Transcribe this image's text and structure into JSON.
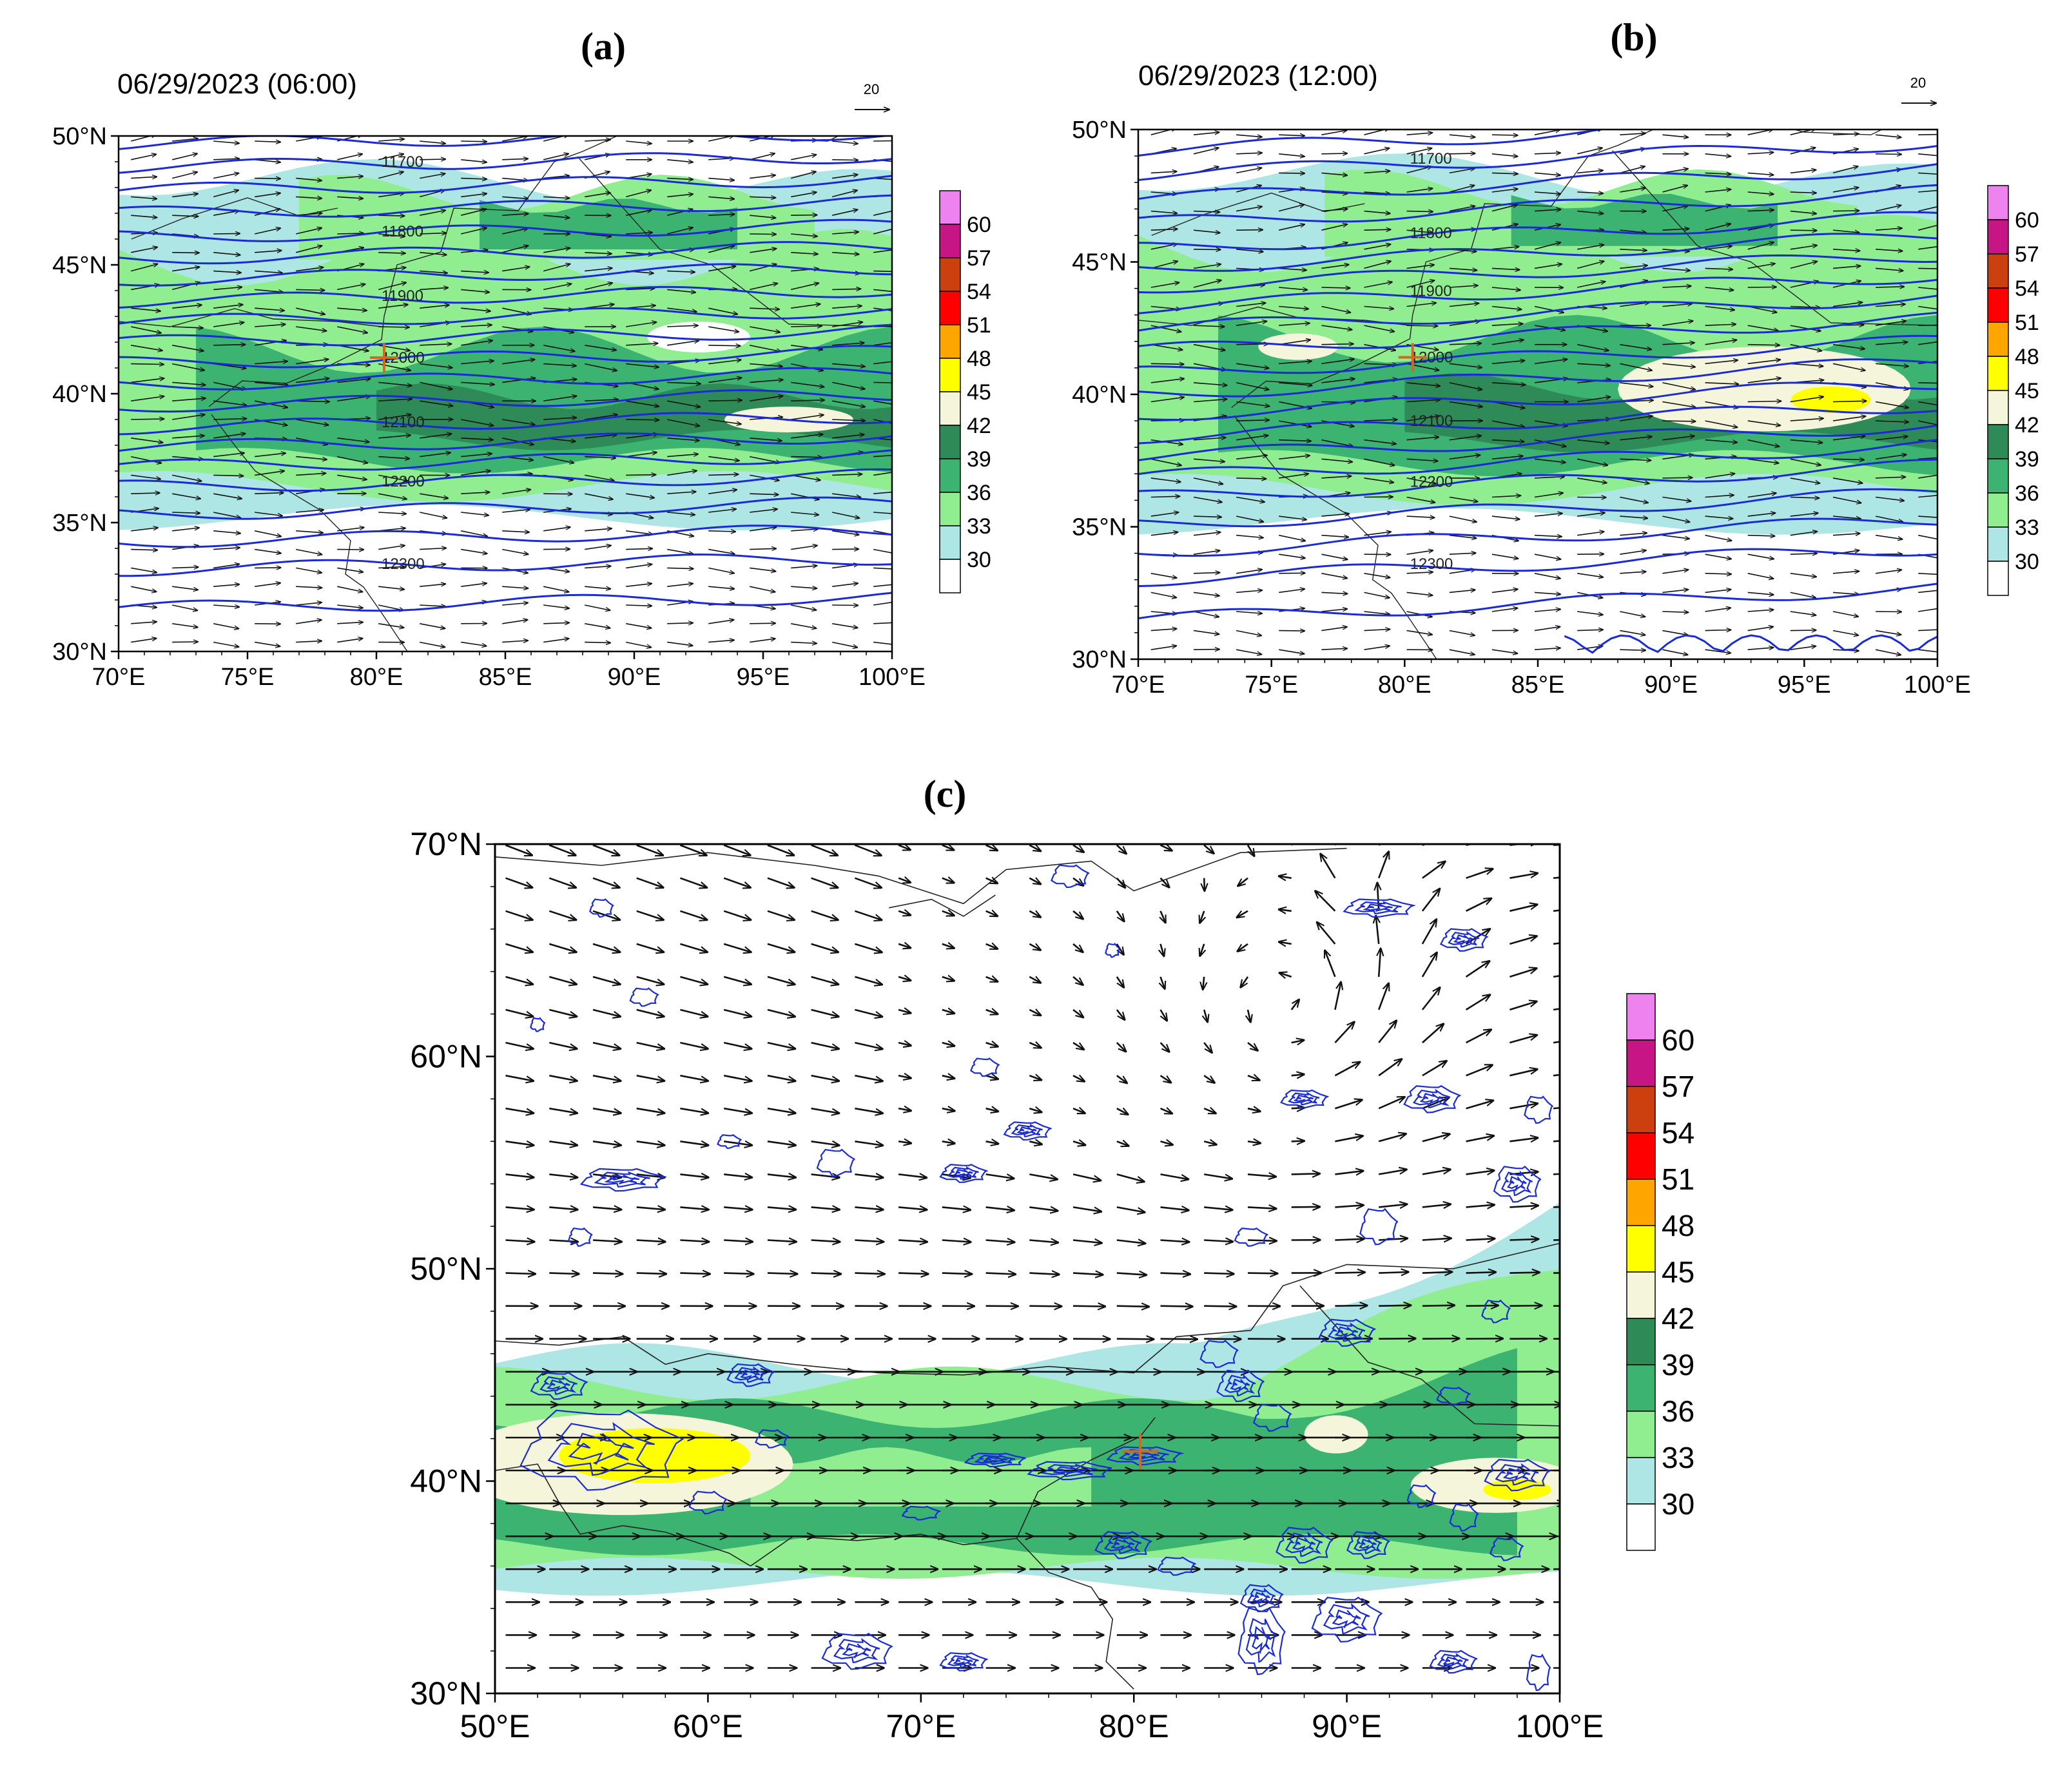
{
  "figure": {
    "panels": [
      {
        "id": "a",
        "label": "(a)",
        "datetime": "06/29/2023 (06:00)",
        "ref_vector_value": "20",
        "lon_ticks": [
          "70°E",
          "75°E",
          "80°E",
          "85°E",
          "90°E",
          "95°E",
          "100°E"
        ],
        "lat_ticks": [
          "30°N",
          "35°N",
          "40°N",
          "45°N",
          "50°N"
        ],
        "lon_range": [
          70,
          100
        ],
        "lat_range": [
          30,
          50
        ],
        "height_contours": [
          {
            "value": "11700",
            "lat": 49.0
          },
          {
            "value": "11800",
            "lat": 46.3
          },
          {
            "value": "11900",
            "lat": 43.8
          },
          {
            "value": "12000",
            "lat": 41.4
          },
          {
            "value": "12100",
            "lat": 38.9
          },
          {
            "value": "12200",
            "lat": 36.6
          },
          {
            "value": "12300",
            "lat": 33.4
          }
        ],
        "site_marker": {
          "lon": 80.3,
          "lat": 41.4
        }
      },
      {
        "id": "b",
        "label": "(b)",
        "datetime": "06/29/2023 (12:00)",
        "ref_vector_value": "20",
        "lon_ticks": [
          "70°E",
          "75°E",
          "80°E",
          "85°E",
          "90°E",
          "95°E",
          "100°E"
        ],
        "lat_ticks": [
          "30°N",
          "35°N",
          "40°N",
          "45°N",
          "50°N"
        ],
        "lon_range": [
          70,
          100
        ],
        "lat_range": [
          30,
          50
        ],
        "height_contours": [
          {
            "value": "11700",
            "lat": 48.9
          },
          {
            "value": "11800",
            "lat": 46.1
          },
          {
            "value": "11900",
            "lat": 43.9
          },
          {
            "value": "12000",
            "lat": 41.4
          },
          {
            "value": "12100",
            "lat": 39.0
          },
          {
            "value": "12200",
            "lat": 36.7
          },
          {
            "value": "12300",
            "lat": 33.6
          }
        ],
        "site_marker": {
          "lon": 80.3,
          "lat": 41.4
        }
      },
      {
        "id": "c",
        "label": "(c)",
        "lon_ticks": [
          "50°E",
          "60°E",
          "70°E",
          "80°E",
          "90°E",
          "100°E"
        ],
        "lat_ticks": [
          "30°N",
          "40°N",
          "50°N",
          "60°N",
          "70°N"
        ],
        "lon_range": [
          50,
          100
        ],
        "lat_range": [
          30,
          70
        ],
        "site_marker": {
          "lon": 80.3,
          "lat": 41.4
        }
      }
    ],
    "colorbar": {
      "levels": [
        "60",
        "57",
        "54",
        "51",
        "48",
        "45",
        "42",
        "39",
        "36",
        "33",
        "30"
      ],
      "colors": [
        "#ee82ee",
        "#c71585",
        "#cc4010",
        "#ff0000",
        "#ffa500",
        "#ffff00",
        "#f5f5dc",
        "#2e8b57",
        "#3cb371",
        "#90ee90",
        "#aee5e5",
        "#ffffff"
      ]
    },
    "colors": {
      "height_contour": "#1a2ad6",
      "vector": "#111111",
      "site_marker": "#d2691e",
      "border": "#222222"
    }
  }
}
